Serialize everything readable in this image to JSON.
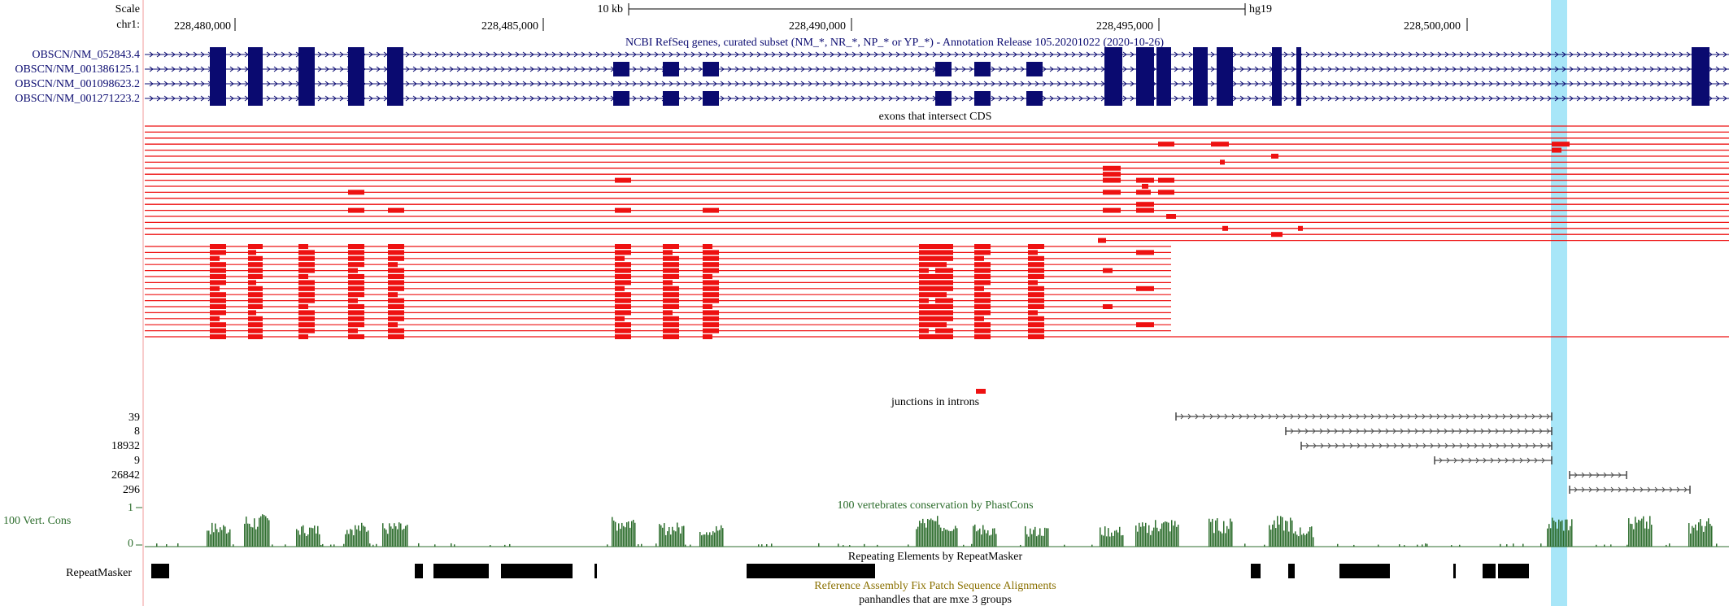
{
  "ruler": {
    "scale_label": "Scale",
    "chrom_label": "chr1:",
    "scale_bar_label": "10 kb",
    "assembly": "hg19",
    "positions": [
      "228,480,000",
      "228,485,000",
      "228,490,000",
      "228,495,000",
      "228,500,000"
    ]
  },
  "refseq": {
    "title": "NCBI RefSeq genes, curated subset (NM_*, NR_*, NP_* or YP_*) - Annotation Release 105.20201022 (2020-10-26)",
    "transcripts": [
      "OBSCN/NM_052843.4",
      "OBSCN/NM_001386125.1",
      "OBSCN/NM_001098623.2",
      "OBSCN/NM_001271223.2"
    ]
  },
  "exons_track": {
    "title": "exons that intersect CDS"
  },
  "junctions_track": {
    "title": "junctions in introns",
    "counts": [
      "39",
      "8",
      "18932",
      "9",
      "26842",
      "296"
    ]
  },
  "conservation": {
    "title": "100 vertebrates conservation by PhastCons",
    "side_label": "100 Vert. Cons",
    "y_max": "1",
    "y_min": "0"
  },
  "repeatmasker": {
    "title": "Repeating Elements by RepeatMasker",
    "side_label": "RepeatMasker"
  },
  "fix_patch": {
    "title": "Reference Assembly Fix Patch Sequence Alignments"
  },
  "panhandles": {
    "title": "panhandles that are mxe 3 groups"
  },
  "colors": {
    "gene": "#0a0a70",
    "exon_hit": "#ee1111",
    "conservation": "#2e6e2e",
    "highlight": "#a8e6f8",
    "fixpatch_title": "#8a7000"
  }
}
